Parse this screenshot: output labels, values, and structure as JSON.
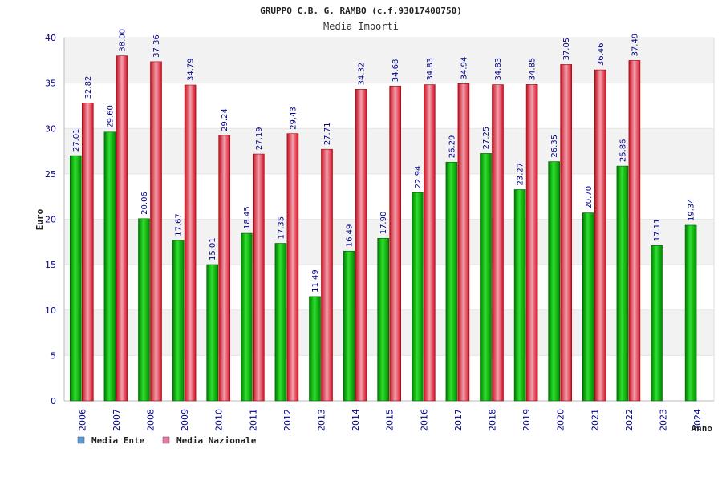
{
  "chart_data": {
    "type": "bar",
    "title": "GRUPPO C.B. G. RAMBO (c.f.93017400750)",
    "subtitle": "Media Importi",
    "xlabel": "Anno",
    "ylabel": "Euro",
    "ylim": [
      0,
      40
    ],
    "yticks": [
      0,
      5,
      10,
      15,
      20,
      25,
      30,
      35,
      40
    ],
    "categories": [
      "2006",
      "2007",
      "2008",
      "2009",
      "2010",
      "2011",
      "2012",
      "2013",
      "2014",
      "2015",
      "2016",
      "2017",
      "2018",
      "2019",
      "2020",
      "2021",
      "2022",
      "2023",
      "2024"
    ],
    "series": [
      {
        "name": "Media Ente",
        "color": "#00b000",
        "values": [
          27.01,
          29.6,
          20.06,
          17.67,
          15.01,
          18.45,
          17.35,
          11.49,
          16.49,
          17.9,
          22.94,
          26.29,
          27.25,
          23.27,
          26.35,
          20.7,
          25.86,
          17.11,
          19.34
        ],
        "labels": [
          "27.01",
          "29.60",
          "20.06",
          "17.67",
          "15.01",
          "18.45",
          "17.35",
          "11.49",
          "16.49",
          "17.90",
          "22.94",
          "26.29",
          "27.25",
          "23.27",
          "26.35",
          "20.70",
          "25.86",
          "17.11",
          "19.34"
        ]
      },
      {
        "name": "Media Nazionale",
        "color": "#e8202a",
        "values": [
          32.82,
          38.0,
          37.36,
          34.79,
          29.24,
          27.19,
          29.43,
          27.71,
          34.32,
          34.68,
          34.83,
          34.94,
          34.83,
          34.85,
          37.05,
          36.46,
          37.49,
          null,
          null
        ],
        "labels": [
          "32.82",
          "38.00",
          "37.36",
          "34.79",
          "29.24",
          "27.19",
          "29.43",
          "27.71",
          "34.32",
          "34.68",
          "34.83",
          "34.94",
          "34.83",
          "34.85",
          "37.05",
          "36.46",
          "37.49",
          null,
          null
        ]
      }
    ],
    "legend": [
      {
        "label": "Media Ente",
        "color": "#5b9bd5"
      },
      {
        "label": "Media Nazionale",
        "color": "#e87aa8"
      }
    ],
    "legend_position": "bottom-left",
    "grid": true
  }
}
